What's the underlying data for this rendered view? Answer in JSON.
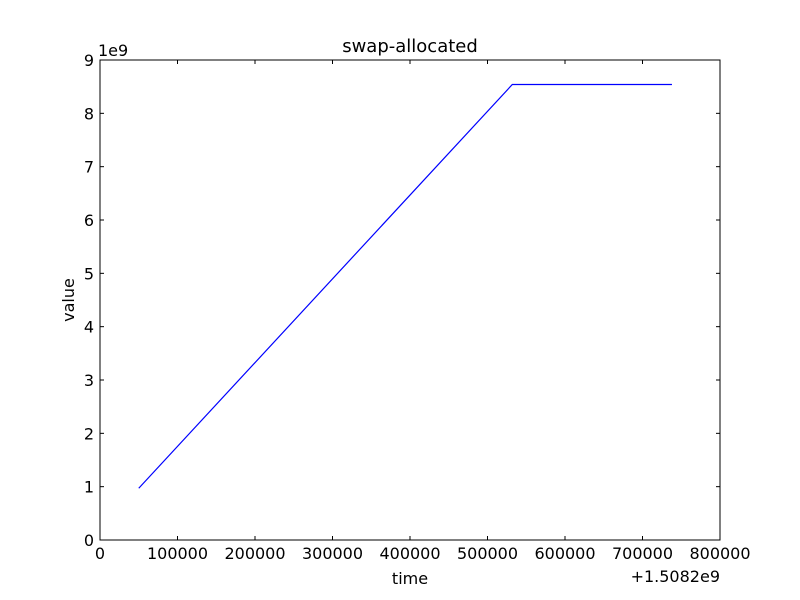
{
  "chart_data": {
    "type": "line",
    "title": "swap-allocated",
    "xlabel": "time",
    "ylabel": "value",
    "x_offset_label": "+1.5082e9",
    "y_multiplier_label": "1e9",
    "xlim": [
      0,
      800000
    ],
    "ylim": [
      0,
      9
    ],
    "x_ticks": [
      0,
      100000,
      200000,
      300000,
      400000,
      500000,
      600000,
      700000,
      800000
    ],
    "y_ticks": [
      0,
      1,
      2,
      3,
      4,
      5,
      6,
      7,
      8,
      9
    ],
    "grid": false,
    "series": [
      {
        "color": "#0000ff",
        "x": [
          50000,
          532000,
          738000
        ],
        "y": [
          0.97,
          8.54,
          8.54
        ]
      }
    ]
  }
}
